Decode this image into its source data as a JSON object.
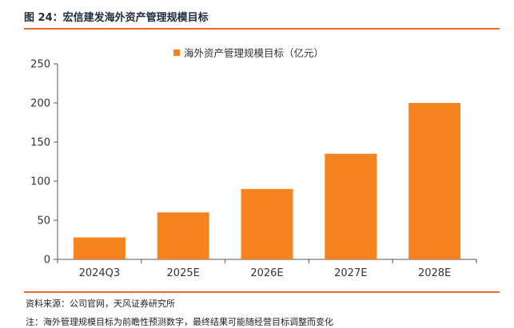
{
  "figure": {
    "title": "图 24：宏信建发海外资产管理规模目标",
    "source": "资料来源：公司官网，天风证券研究所",
    "note": "注：海外管理规模目标为前瞻性预测数字，最终结果可能随经营目标调整而变化"
  },
  "colors": {
    "bar": "#f5841f",
    "rule": "#e86f1c",
    "axis": "#555555"
  },
  "chart_data": {
    "type": "bar",
    "title": "",
    "xlabel": "",
    "ylabel": "",
    "categories": [
      "2024Q3",
      "2025E",
      "2026E",
      "2027E",
      "2028E"
    ],
    "series": [
      {
        "name": "海外资产管理规模目标（亿元）",
        "values": [
          28,
          60,
          90,
          135,
          200
        ]
      }
    ],
    "ylim": [
      0,
      250
    ],
    "yticks": [
      0,
      50,
      100,
      150,
      200,
      250
    ],
    "grid": false,
    "legend_position": "top-center"
  }
}
